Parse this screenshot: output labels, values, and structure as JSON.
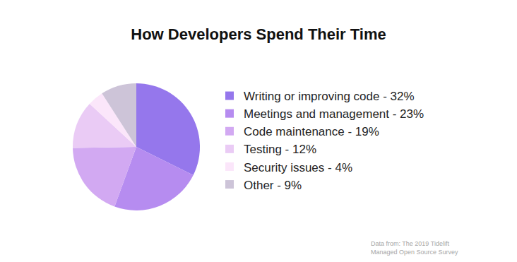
{
  "chart_data": {
    "type": "pie",
    "title": "How Developers Spend Their Time",
    "categories": [
      "Writing or improving code - 32%",
      "Meetings and management - 23%",
      "Code maintenance - 19%",
      "Testing - 12%",
      "Security issues - 4%",
      "Other - 9%"
    ],
    "values": [
      32,
      23,
      19,
      12,
      4,
      9
    ],
    "colors": [
      "#9577ec",
      "#b68cf0",
      "#d2a9f2",
      "#eacbf5",
      "#fbe6fa",
      "#cdc4d8"
    ],
    "legend": "right",
    "data_labels": false,
    "annotations": [
      "Data from: The 2019 Tidelift",
      "Managed Open Source Survey"
    ]
  }
}
